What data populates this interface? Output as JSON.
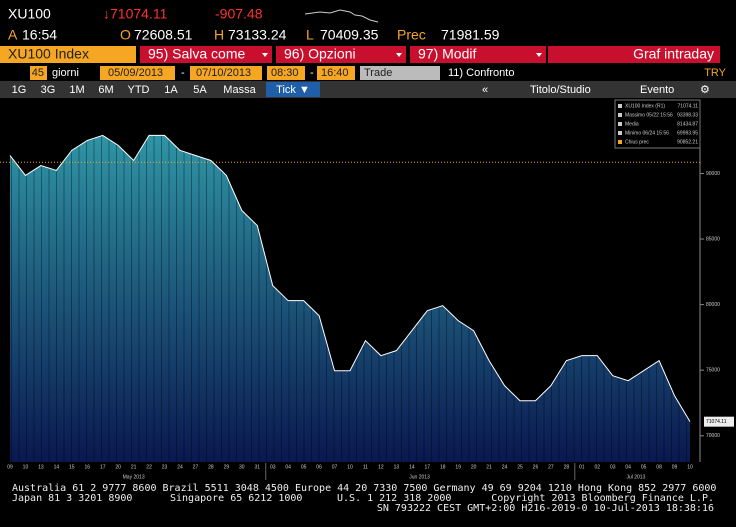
{
  "header": {
    "ticker": "XU100",
    "last": "↓71074.11",
    "change": "-907.48",
    "time_label": "A",
    "time": "16:54",
    "open_label": "O",
    "open": "72608.51",
    "high_label": "H",
    "high": "73133.24",
    "low_label": "L",
    "low": "70409.35",
    "prev_label": "Prec",
    "prev": "71981.59"
  },
  "toolbar": {
    "security": "XU100 Index",
    "buttons": [
      "95) Salva come",
      "96) Opzioni",
      "97) Modif"
    ],
    "graph": "Graf intraday"
  },
  "settings": {
    "period": "45",
    "unit": "giorni",
    "start": "05/09/2013",
    "dash": "-",
    "end": "07/10/2013",
    "time_start": "08:30",
    "time_end": "16:40",
    "field": "Trade",
    "compare": "11) Confronto",
    "currency": "TRY"
  },
  "ranges": [
    "1G",
    "3G",
    "1M",
    "6M",
    "YTD",
    "1A",
    "5A",
    "Massa",
    "Tick ▼"
  ],
  "tools": [
    "«",
    "Titolo/Studio",
    "Evento"
  ],
  "chart_data": {
    "type": "area",
    "categories": [
      "09",
      "10",
      "13",
      "14",
      "15",
      "16",
      "17",
      "20",
      "21",
      "22",
      "23",
      "24",
      "27",
      "28",
      "29",
      "30",
      "31",
      "03",
      "04",
      "05",
      "06",
      "07",
      "10",
      "11",
      "12",
      "13",
      "14",
      "17",
      "18",
      "19",
      "20",
      "21",
      "24",
      "25",
      "26",
      "27",
      "28",
      "01",
      "02",
      "03",
      "04",
      "05",
      "08",
      "09",
      "10"
    ],
    "months": [
      "May 2013",
      "Jun 2013",
      "Jul 2013"
    ],
    "values": [
      91370,
      89850,
      90600,
      90230,
      91760,
      92520,
      92900,
      92140,
      90990,
      92900,
      92900,
      91760,
      91370,
      90990,
      89850,
      87180,
      86030,
      81450,
      80300,
      80300,
      79160,
      74960,
      74960,
      77250,
      76110,
      76490,
      78010,
      79540,
      79920,
      78780,
      78010,
      75730,
      73820,
      72670,
      72670,
      73820,
      75730,
      76110,
      76110,
      74580,
      74200,
      74960,
      75730,
      73050,
      71074.11
    ],
    "value_labels": [
      null,
      null,
      null,
      null,
      null,
      null,
      null,
      null,
      null,
      null,
      null,
      null,
      null,
      null,
      null,
      null,
      null,
      null,
      null,
      null,
      null,
      null,
      null,
      null,
      null,
      null,
      null,
      null,
      null,
      null,
      null,
      null,
      null,
      null,
      null,
      null,
      null,
      null,
      null,
      null,
      null,
      null,
      null,
      null,
      "71074.11"
    ],
    "ylim": [
      68000,
      95600
    ],
    "yticks": [
      70000,
      75000,
      80000,
      85000,
      90000
    ],
    "legend": [
      {
        "label": "XU100 Index (R1)",
        "value": 71074.11
      },
      {
        "label": "Massimo 05/22 15:56",
        "value": 93398.33
      },
      {
        "label": "Media",
        "value": 81434.87
      },
      {
        "label": "Minimo 06/24 15:56",
        "value": 69993.95
      },
      {
        "label": "Chius prec",
        "value": 90852.21
      }
    ],
    "line_color": "#ffffff",
    "fill_top": "#2f95a5",
    "fill_bottom": "#0a1850",
    "ref_color": "#f5a623"
  },
  "footer": [
    "Australia 61 2 9777 8600 Brazil 5511 3048 4500 Europe 44 20 7330 7500 Germany 49 69 9204 1210 Hong Kong 852 2977 6000",
    "Japan 81 3 3201 8900",
    "Singapore 65 6212 1000",
    "U.S. 1 212 318 2000",
    "Copyright 2013 Bloomberg Finance L.P.",
    "SN 793222 CEST GMT+2:00 H216-2019-0 10-Jul-2013 18:38:16"
  ]
}
